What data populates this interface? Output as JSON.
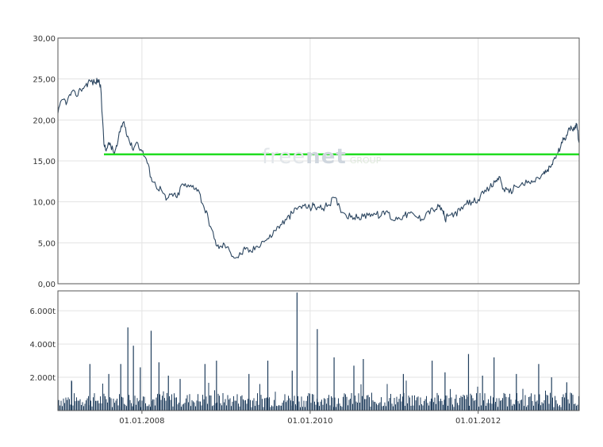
{
  "watermark": {
    "part1": "free",
    "part2": "net",
    "part3": "GROUP"
  },
  "colors": {
    "price_line": "#2c4660",
    "reference_line": "#22dd22",
    "volume_bars": "#1f3d5c",
    "grid": "#e3e3e3",
    "frame": "#555555"
  },
  "chart_data": [
    {
      "type": "line",
      "title": "",
      "xlabel": "",
      "ylabel": "",
      "x_range": [
        "2007-01-01",
        "2013-03-15"
      ],
      "ylim": [
        0,
        30
      ],
      "y_ticks": [
        {
          "value": 0,
          "label": "0,00"
        },
        {
          "value": 5,
          "label": "5,00"
        },
        {
          "value": 10,
          "label": "10,00"
        },
        {
          "value": 15,
          "label": "15,00"
        },
        {
          "value": 20,
          "label": "20,00"
        },
        {
          "value": 25,
          "label": "25,00"
        },
        {
          "value": 30,
          "label": "30,00"
        }
      ],
      "x_gridlines": [
        "2008-01-01",
        "2010-01-01",
        "2012-01-01"
      ],
      "grid": true,
      "legend": "none",
      "series": [
        {
          "x": [
            "2007-01-01",
            "2007-01-20",
            "2007-02-10",
            "2007-03-01",
            "2007-03-20",
            "2007-04-10",
            "2007-05-01",
            "2007-05-20",
            "2007-06-10",
            "2007-06-25",
            "2007-07-05",
            "2007-07-20",
            "2007-08-01",
            "2007-08-15",
            "2007-09-01",
            "2007-09-15",
            "2007-10-01",
            "2007-10-15",
            "2007-11-01",
            "2007-11-20",
            "2007-12-10",
            "2008-01-01",
            "2008-01-20",
            "2008-02-10",
            "2008-03-01",
            "2008-03-25",
            "2008-04-15",
            "2008-05-10",
            "2008-06-01",
            "2008-06-25",
            "2008-07-15",
            "2008-08-10",
            "2008-09-01",
            "2008-09-25",
            "2008-10-15",
            "2008-11-10",
            "2008-12-01",
            "2008-12-25",
            "2009-01-20",
            "2009-02-15",
            "2009-03-05",
            "2009-03-25",
            "2009-04-20",
            "2009-05-15",
            "2009-06-10",
            "2009-07-05",
            "2009-08-01",
            "2009-08-25",
            "2009-09-20",
            "2009-10-15",
            "2009-11-10",
            "2009-12-05",
            "2010-01-01",
            "2010-01-15",
            "2010-02-01",
            "2010-02-25",
            "2010-03-20",
            "2010-04-15",
            "2010-05-10",
            "2010-06-05",
            "2010-07-01",
            "2010-07-25",
            "2010-08-20",
            "2010-09-15",
            "2010-10-10",
            "2010-11-05",
            "2010-12-01",
            "2010-12-25",
            "2011-01-20",
            "2011-02-15",
            "2011-03-10",
            "2011-04-05",
            "2011-05-01",
            "2011-05-25",
            "2011-06-20",
            "2011-07-15",
            "2011-08-01",
            "2011-08-10",
            "2011-08-25",
            "2011-09-20",
            "2011-10-15",
            "2011-11-10",
            "2011-12-05",
            "2012-01-01",
            "2012-01-25",
            "2012-02-20",
            "2012-03-15",
            "2012-04-01",
            "2012-04-20",
            "2012-05-15",
            "2012-06-10",
            "2012-07-05",
            "2012-08-01",
            "2012-08-25",
            "2012-09-20",
            "2012-10-10",
            "2012-10-25",
            "2012-11-10",
            "2012-11-25",
            "2012-12-10",
            "2012-12-25",
            "2013-01-10",
            "2013-01-25",
            "2013-02-10",
            "2013-02-25",
            "2013-03-05",
            "2013-03-15"
          ],
          "y": [
            20.8,
            22.5,
            22.2,
            23.4,
            23.0,
            23.7,
            24.2,
            24.8,
            24.5,
            24.9,
            24.3,
            17.0,
            16.5,
            17.2,
            15.9,
            16.8,
            19.0,
            19.8,
            18.0,
            16.5,
            17.3,
            16.2,
            15.2,
            13.0,
            12.0,
            11.5,
            10.2,
            11.0,
            10.5,
            12.2,
            11.8,
            12.0,
            11.5,
            9.5,
            8.0,
            5.5,
            4.3,
            4.8,
            3.8,
            3.2,
            3.6,
            4.2,
            3.9,
            4.6,
            5.2,
            5.5,
            6.5,
            7.2,
            7.8,
            8.6,
            9.3,
            9.5,
            9.2,
            9.6,
            9.3,
            9.2,
            9.6,
            10.5,
            9.3,
            8.4,
            8.3,
            8.0,
            8.2,
            8.6,
            8.5,
            8.3,
            8.9,
            7.8,
            8.1,
            8.3,
            8.6,
            8.2,
            7.9,
            8.8,
            9.0,
            9.4,
            8.9,
            7.8,
            8.3,
            8.6,
            8.9,
            9.7,
            10.0,
            10.3,
            11.0,
            11.7,
            12.4,
            13.1,
            11.6,
            11.1,
            11.9,
            12.1,
            12.3,
            12.4,
            12.9,
            13.4,
            13.7,
            14.2,
            15.2,
            15.8,
            16.8,
            17.8,
            18.6,
            19.0,
            19.2,
            19.5,
            17.2
          ]
        }
      ],
      "reference_line": {
        "y": 15.8,
        "x_start": "2007-07-20",
        "x_end": "2013-03-15"
      }
    },
    {
      "type": "bar",
      "title": "",
      "xlabel": "",
      "ylabel": "",
      "x_range": [
        "2007-01-01",
        "2013-03-15"
      ],
      "ylim": [
        0,
        7200
      ],
      "y_ticks": [
        {
          "value": 2000,
          "label": "2.000t"
        },
        {
          "value": 4000,
          "label": "4.000t"
        },
        {
          "value": 6000,
          "label": "6.000t"
        }
      ],
      "x_ticks": [
        {
          "value": "2008-01-01",
          "label": "01.01.2008"
        },
        {
          "value": "2010-01-01",
          "label": "01.01.2010"
        },
        {
          "value": "2012-01-01",
          "label": "01.01.2012"
        }
      ],
      "grid": true,
      "legend": "none",
      "baseline_volume_approx": 800,
      "spikes": [
        {
          "x": "2007-03-01",
          "value": 1800
        },
        {
          "x": "2007-05-20",
          "value": 2800
        },
        {
          "x": "2007-08-10",
          "value": 2200
        },
        {
          "x": "2007-10-01",
          "value": 2800
        },
        {
          "x": "2007-11-01",
          "value": 5000
        },
        {
          "x": "2007-11-25",
          "value": 3900
        },
        {
          "x": "2007-12-25",
          "value": 2600
        },
        {
          "x": "2008-02-10",
          "value": 4800
        },
        {
          "x": "2008-03-15",
          "value": 2900
        },
        {
          "x": "2008-04-25",
          "value": 2100
        },
        {
          "x": "2008-06-15",
          "value": 1900
        },
        {
          "x": "2008-10-01",
          "value": 2800
        },
        {
          "x": "2008-11-20",
          "value": 3000
        },
        {
          "x": "2009-04-10",
          "value": 2200
        },
        {
          "x": "2009-07-01",
          "value": 3000
        },
        {
          "x": "2009-10-15",
          "value": 2400
        },
        {
          "x": "2009-11-05",
          "value": 7100
        },
        {
          "x": "2010-02-01",
          "value": 4900
        },
        {
          "x": "2010-04-15",
          "value": 3200
        },
        {
          "x": "2010-07-10",
          "value": 2700
        },
        {
          "x": "2010-08-20",
          "value": 3100
        },
        {
          "x": "2011-02-10",
          "value": 2200
        },
        {
          "x": "2011-06-15",
          "value": 3000
        },
        {
          "x": "2011-08-10",
          "value": 2300
        },
        {
          "x": "2011-11-20",
          "value": 3400
        },
        {
          "x": "2012-01-20",
          "value": 2100
        },
        {
          "x": "2012-03-10",
          "value": 3200
        },
        {
          "x": "2012-06-15",
          "value": 2200
        },
        {
          "x": "2012-09-20",
          "value": 2800
        },
        {
          "x": "2012-11-15",
          "value": 2000
        },
        {
          "x": "2013-01-20",
          "value": 1700
        }
      ]
    }
  ]
}
